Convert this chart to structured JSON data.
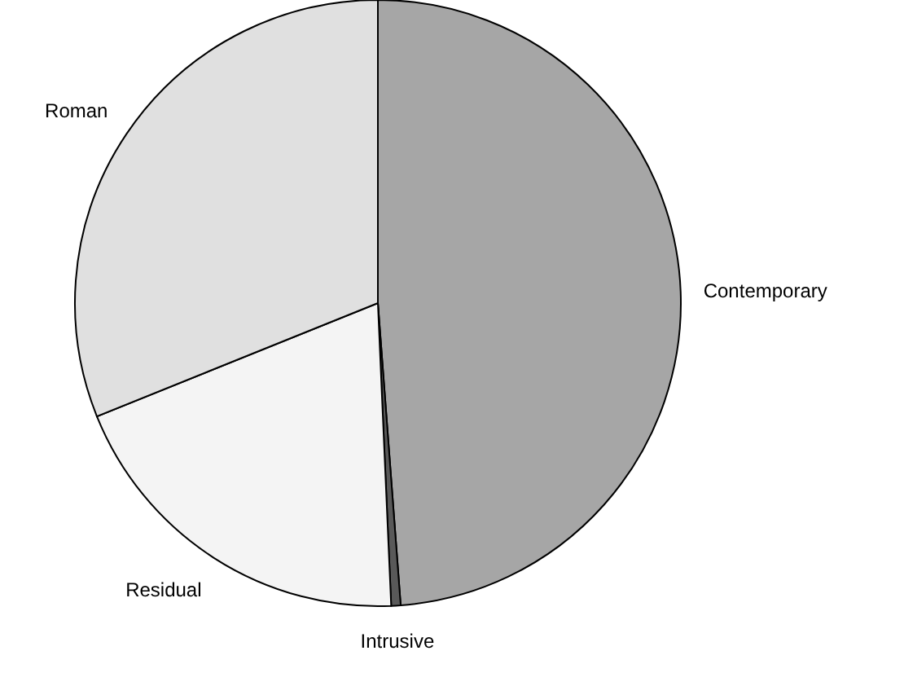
{
  "chart_data": {
    "type": "pie",
    "categories": [
      "Contemporary",
      "Intrusive",
      "Residual",
      "Roman"
    ],
    "values": [
      48.8,
      0.5,
      19.6,
      31.1
    ],
    "colors": [
      "#a6a6a6",
      "#595959",
      "#f4f4f4",
      "#e0e0e0"
    ]
  }
}
